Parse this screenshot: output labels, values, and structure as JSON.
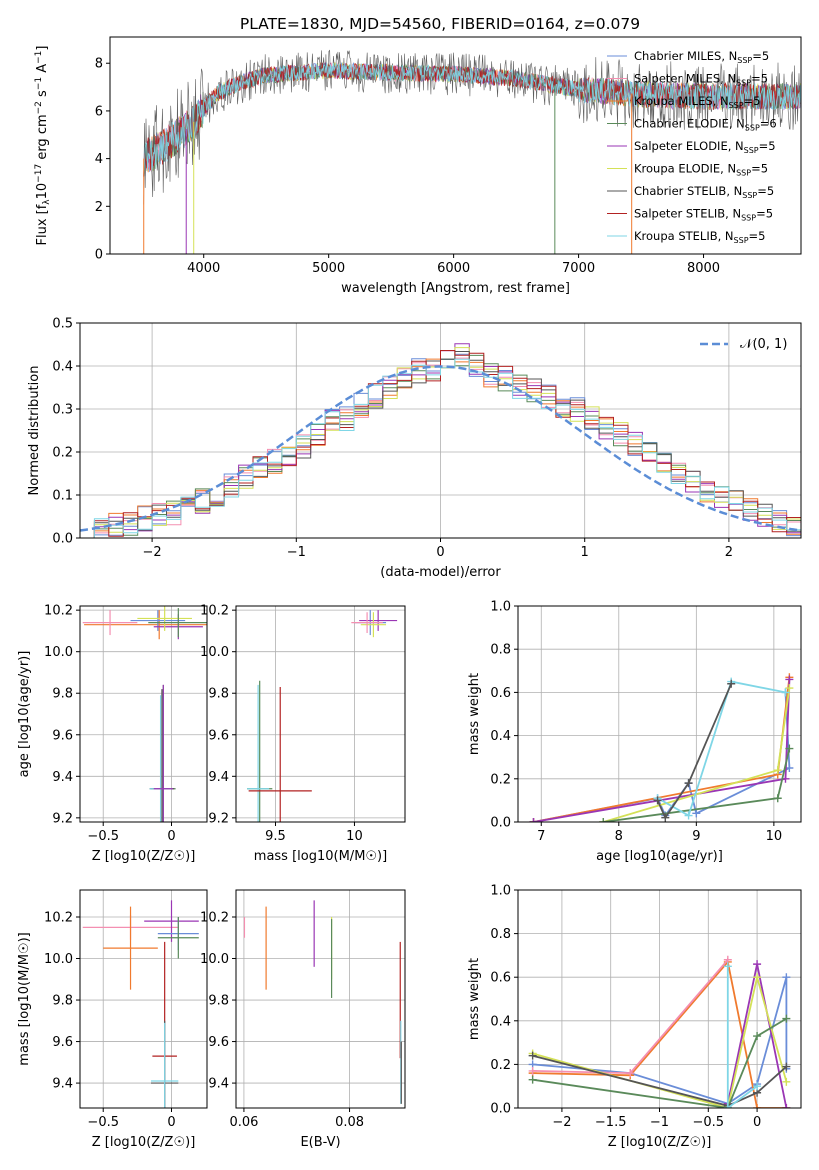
{
  "figure": {
    "title": "PLATE=1830, MJD=54560, FIBERID=0164, z=0.079"
  },
  "colors": [
    "#6a8dd8",
    "#f48fb1",
    "#f07a2e",
    "#5a8a5a",
    "#9a36b4",
    "#d4e157",
    "#555555",
    "#b22222",
    "#7fd6e6"
  ],
  "legend_top": [
    "Chabrier MILES, N_SSP=5",
    "Salpeter MILES, N_SSP=5",
    "Kroupa MILES, N_SSP=5",
    "Chabrier ELODIE, N_SSP=6",
    "Salpeter ELODIE, N_SSP=5",
    "Kroupa ELODIE, N_SSP=5",
    "Chabrier STELIB, N_SSP=5",
    "Salpeter STELIB, N_SSP=5",
    "Kroupa STELIB, N_SSP=5"
  ],
  "chart_data": [
    {
      "id": "spectrum",
      "type": "line",
      "xlabel": "wavelength [Angstrom, rest frame]",
      "ylabel": "Flux [f_λ 10^-17 erg cm^-2 s^-1 A^-1]",
      "xlim": [
        3250,
        8780
      ],
      "ylim": [
        0,
        9.1
      ],
      "xticks": [
        4000,
        5000,
        6000,
        7000,
        8000
      ],
      "yticks": [
        0,
        2,
        4,
        6,
        8
      ],
      "grid": false,
      "legend_position": "right",
      "series_shape_points": [
        [
          3520,
          4.0
        ],
        [
          3700,
          4.6
        ],
        [
          3900,
          5.4
        ],
        [
          4000,
          6.1
        ],
        [
          4100,
          6.7
        ],
        [
          4300,
          7.2
        ],
        [
          4500,
          7.5
        ],
        [
          5000,
          7.7
        ],
        [
          5500,
          7.6
        ],
        [
          6000,
          7.55
        ],
        [
          6500,
          7.35
        ],
        [
          7000,
          6.9
        ],
        [
          7500,
          6.7
        ],
        [
          8000,
          6.6
        ],
        [
          8500,
          6.6
        ],
        [
          8780,
          6.6
        ]
      ]
    },
    {
      "id": "residual_hist",
      "type": "line",
      "xlabel": "(data-model)/error",
      "ylabel": "Normed distribution",
      "xlim": [
        -2.5,
        2.5
      ],
      "ylim": [
        0,
        0.5
      ],
      "xticks": [
        -2,
        -1,
        0,
        1,
        2
      ],
      "yticks": [
        0.0,
        0.1,
        0.2,
        0.3,
        0.4,
        0.5
      ],
      "grid": true,
      "legend": "𝒩(0, 1)",
      "legend_position": "top-right",
      "bin_width": 0.1,
      "hist_mean": [
        0.02,
        0.025,
        0.03,
        0.035,
        0.045,
        0.055,
        0.06,
        0.075,
        0.085,
        0.1,
        0.12,
        0.14,
        0.16,
        0.18,
        0.19,
        0.21,
        0.24,
        0.27,
        0.28,
        0.31,
        0.33,
        0.35,
        0.37,
        0.39,
        0.39,
        0.42,
        0.43,
        0.4,
        0.38,
        0.37,
        0.35,
        0.34,
        0.33,
        0.3,
        0.3,
        0.28,
        0.26,
        0.24,
        0.22,
        0.2,
        0.17,
        0.15,
        0.13,
        0.11,
        0.1,
        0.08,
        0.065,
        0.05,
        0.04,
        0.03
      ]
    },
    {
      "id": "age_vs_Z",
      "type": "scatter",
      "xlabel": "Z [log10(Z/Z☉)]",
      "ylabel": "age  [log10(age/yr)]",
      "xlim": [
        -0.67,
        0.26
      ],
      "ylim": [
        9.18,
        10.22
      ],
      "xticks": [
        -0.5,
        0.0
      ],
      "yticks": [
        9.2,
        9.4,
        9.6,
        9.8,
        10.0,
        10.2
      ],
      "grid": true,
      "points": [
        {
          "x": -0.09,
          "y": 10.13,
          "xerr": 0.55,
          "yerr": 0.07,
          "c": 2
        },
        {
          "x": -0.45,
          "y": 10.14,
          "xerr": 0.2,
          "yerr": 0.06,
          "c": 1
        },
        {
          "x": -0.1,
          "y": 10.15,
          "xerr": 0.2,
          "yerr": 0.05,
          "c": 0
        },
        {
          "x": 0.05,
          "y": 10.12,
          "xerr": 0.18,
          "yerr": 0.06,
          "c": 4
        },
        {
          "x": -0.05,
          "y": 10.16,
          "xerr": 0.2,
          "yerr": 0.06,
          "c": 5
        },
        {
          "x": 0.05,
          "y": 10.14,
          "xerr": 0.22,
          "yerr": 0.07,
          "c": 3
        },
        {
          "x": -0.06,
          "y": 9.34,
          "xerr": 0.09,
          "yerr": 0.5,
          "c": 3
        },
        {
          "x": -0.07,
          "y": 9.34,
          "xerr": 0.09,
          "yerr": 0.48,
          "c": 6
        },
        {
          "x": -0.08,
          "y": 9.34,
          "xerr": 0.08,
          "yerr": 0.45,
          "c": 8
        },
        {
          "x": -0.06,
          "y": 9.34,
          "xerr": 0.07,
          "yerr": 0.5,
          "c": 4
        }
      ]
    },
    {
      "id": "age_vs_mass",
      "type": "scatter",
      "xlabel": "mass [log10(M/M☉)]",
      "ylabel": "",
      "xlim": [
        9.25,
        10.32
      ],
      "ylim": [
        9.18,
        10.22
      ],
      "xticks": [
        9.5,
        10.0
      ],
      "yticks": [
        9.2,
        9.4,
        9.6,
        9.8,
        10.0,
        10.2
      ],
      "grid": true,
      "points": [
        {
          "x": 10.1,
          "y": 10.14,
          "xerr": 0.1,
          "yerr": 0.06,
          "c": 0
        },
        {
          "x": 10.15,
          "y": 10.15,
          "xerr": 0.12,
          "yerr": 0.05,
          "c": 4
        },
        {
          "x": 10.12,
          "y": 10.13,
          "xerr": 0.08,
          "yerr": 0.06,
          "c": 5
        },
        {
          "x": 10.08,
          "y": 10.14,
          "xerr": 0.1,
          "yerr": 0.05,
          "c": 1
        },
        {
          "x": 9.4,
          "y": 9.34,
          "xerr": 0.08,
          "yerr": 0.52,
          "c": 3
        },
        {
          "x": 9.39,
          "y": 9.34,
          "xerr": 0.07,
          "yerr": 0.5,
          "c": 8
        },
        {
          "x": 9.53,
          "y": 9.33,
          "xerr": 0.2,
          "yerr": 0.5,
          "c": 7
        }
      ]
    },
    {
      "id": "mass_weight_vs_age",
      "type": "line",
      "xlabel": "age  [log10(age/yr)]",
      "ylabel": "mass weight",
      "xlim": [
        6.7,
        10.35
      ],
      "ylim": [
        0,
        1.0
      ],
      "xticks": [
        7,
        8,
        9,
        10
      ],
      "yticks": [
        0.0,
        0.2,
        0.4,
        0.6,
        0.8,
        1.0
      ],
      "grid": true,
      "series": [
        {
          "c": 0,
          "x": [
            6.9,
            8.5,
            8.6,
            8.9,
            9.0,
            10.2,
            10.15
          ],
          "y": [
            0.0,
            0.11,
            0.03,
            0.18,
            0.04,
            0.25,
            0.6
          ]
        },
        {
          "c": 2,
          "x": [
            6.9,
            10.05,
            10.2
          ],
          "y": [
            0.0,
            0.22,
            0.67
          ]
        },
        {
          "c": 4,
          "x": [
            6.9,
            10.15,
            10.2
          ],
          "y": [
            0.0,
            0.2,
            0.66
          ]
        },
        {
          "c": 5,
          "x": [
            7.8,
            10.05,
            10.2
          ],
          "y": [
            0.0,
            0.24,
            0.62
          ]
        },
        {
          "c": 3,
          "x": [
            7.8,
            10.05,
            10.2
          ],
          "y": [
            0.0,
            0.11,
            0.34
          ]
        },
        {
          "c": 8,
          "x": [
            8.5,
            8.9,
            9.45,
            10.15
          ],
          "y": [
            0.11,
            0.03,
            0.65,
            0.6
          ]
        },
        {
          "c": 6,
          "x": [
            8.5,
            8.6,
            8.9,
            9.45
          ],
          "y": [
            0.1,
            0.02,
            0.18,
            0.64
          ]
        }
      ]
    },
    {
      "id": "mass_vs_Z",
      "type": "scatter",
      "xlabel": "Z [log10(Z/Z☉)]",
      "ylabel": "mass [log10(M/M☉)]",
      "xlim": [
        -0.67,
        0.26
      ],
      "ylim": [
        9.28,
        10.33
      ],
      "xticks": [
        -0.5,
        0.0
      ],
      "yticks": [
        9.4,
        9.6,
        9.8,
        10.0,
        10.2
      ],
      "grid": true,
      "points": [
        {
          "x": -0.3,
          "y": 10.15,
          "xerr": 0.35,
          "yerr": 0.06,
          "c": 1
        },
        {
          "x": -0.3,
          "y": 10.05,
          "xerr": 0.2,
          "yerr": 0.2,
          "c": 2
        },
        {
          "x": 0.0,
          "y": 10.18,
          "xerr": 0.2,
          "yerr": 0.1,
          "c": 4
        },
        {
          "x": 0.05,
          "y": 10.12,
          "xerr": 0.15,
          "yerr": 0.08,
          "c": 0
        },
        {
          "x": 0.05,
          "y": 10.1,
          "xerr": 0.15,
          "yerr": 0.1,
          "c": 3
        },
        {
          "x": -0.05,
          "y": 9.53,
          "xerr": 0.09,
          "yerr": 0.55,
          "c": 7
        },
        {
          "x": -0.05,
          "y": 9.4,
          "xerr": 0.1,
          "yerr": 0.3,
          "c": 6
        },
        {
          "x": -0.05,
          "y": 9.41,
          "xerr": 0.1,
          "yerr": 0.28,
          "c": 8
        }
      ]
    },
    {
      "id": "mass_vs_ebv",
      "type": "scatter",
      "xlabel": "E(B-V)",
      "ylabel": "",
      "xlim": [
        0.0585,
        0.0905
      ],
      "ylim": [
        9.28,
        10.33
      ],
      "xticks": [
        0.06,
        0.08
      ],
      "yticks": [
        9.4,
        9.6,
        9.8,
        10.0,
        10.2
      ],
      "grid": true,
      "points": [
        {
          "x": 0.0601,
          "y": 10.15,
          "yerr": 0.05,
          "c": 1
        },
        {
          "x": 0.0642,
          "y": 10.05,
          "yerr": 0.2,
          "c": 2
        },
        {
          "x": 0.0733,
          "y": 10.12,
          "yerr": 0.16,
          "c": 4
        },
        {
          "x": 0.0766,
          "y": 10.05,
          "yerr": 0.15,
          "c": 5
        },
        {
          "x": 0.0766,
          "y": 10.0,
          "yerr": 0.19,
          "c": 3
        },
        {
          "x": 0.0896,
          "y": 9.8,
          "yerr": 0.28,
          "c": 7
        },
        {
          "x": 0.0897,
          "y": 9.5,
          "yerr": 0.2,
          "c": 8
        },
        {
          "x": 0.0898,
          "y": 9.45,
          "yerr": 0.15,
          "c": 6
        }
      ]
    },
    {
      "id": "mass_weight_vs_Z",
      "type": "line",
      "xlabel": "Z [log10(Z/Z☉)]",
      "ylabel": "mass weight",
      "xlim": [
        -2.45,
        0.45
      ],
      "ylim": [
        0,
        1.0
      ],
      "xticks": [
        -2.0,
        -1.5,
        -1.0,
        -0.5,
        0.0
      ],
      "yticks": [
        0.0,
        0.2,
        0.4,
        0.6,
        0.8,
        1.0
      ],
      "grid": true,
      "series": [
        {
          "c": 0,
          "x": [
            -2.3,
            -1.3,
            -0.3,
            0.0,
            0.3,
            0.3
          ],
          "y": [
            0.2,
            0.16,
            0.02,
            0.11,
            0.6,
            0.18
          ]
        },
        {
          "c": 2,
          "x": [
            -2.3,
            -1.3,
            -0.3,
            0.0,
            0.3
          ],
          "y": [
            0.16,
            0.15,
            0.67,
            0.0,
            0.0
          ]
        },
        {
          "c": 1,
          "x": [
            -2.3,
            -1.3,
            -0.3
          ],
          "y": [
            0.17,
            0.16,
            0.68
          ]
        },
        {
          "c": 4,
          "x": [
            -0.3,
            0.0,
            0.3
          ],
          "y": [
            0.02,
            0.66,
            0.0
          ]
        },
        {
          "c": 5,
          "x": [
            -2.3,
            -0.3,
            0.0,
            0.3
          ],
          "y": [
            0.25,
            0.0,
            0.6,
            0.12
          ]
        },
        {
          "c": 3,
          "x": [
            -2.3,
            -0.3,
            0.0,
            0.3
          ],
          "y": [
            0.13,
            0.0,
            0.33,
            0.41
          ]
        },
        {
          "c": 6,
          "x": [
            -2.3,
            -0.3,
            0.0,
            0.3
          ],
          "y": [
            0.24,
            0.01,
            0.07,
            0.19
          ]
        },
        {
          "c": 8,
          "x": [
            -0.3,
            -0.3,
            0.0
          ],
          "y": [
            0.65,
            0.0,
            0.1
          ]
        }
      ]
    }
  ]
}
